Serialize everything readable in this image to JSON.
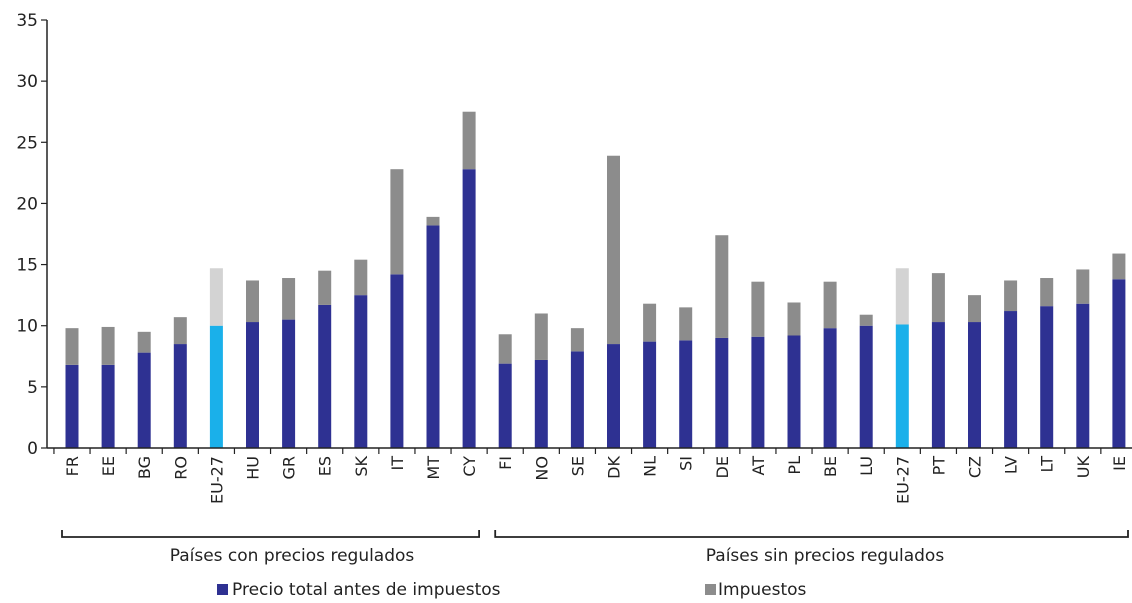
{
  "chart_data": {
    "type": "bar",
    "stacked": true,
    "categories": [
      "FR",
      "EE",
      "BG",
      "RO",
      "EU-27",
      "HU",
      "GR",
      "ES",
      "SK",
      "IT",
      "MT",
      "CY",
      "FI",
      "NO",
      "SE",
      "DK",
      "NL",
      "SI",
      "DE",
      "AT",
      "PL",
      "BE",
      "LU",
      "EU-27",
      "PT",
      "CZ",
      "LV",
      "LT",
      "UK",
      "IE"
    ],
    "series": [
      {
        "name": "Precio total antes de impuestos",
        "color": "#2e3192",
        "values": [
          6.8,
          6.8,
          7.8,
          8.5,
          10.0,
          10.3,
          10.5,
          11.7,
          12.5,
          14.2,
          18.2,
          22.8,
          6.9,
          7.2,
          7.9,
          8.5,
          8.7,
          8.8,
          9.0,
          9.1,
          9.2,
          9.8,
          10.0,
          10.1,
          10.3,
          10.3,
          11.2,
          11.6,
          11.8,
          13.8
        ]
      },
      {
        "name": "Impuestos",
        "color": "#8c8c8c",
        "values": [
          3.0,
          3.1,
          1.7,
          2.2,
          4.7,
          3.4,
          3.4,
          2.8,
          2.9,
          8.6,
          0.7,
          4.7,
          2.4,
          3.8,
          1.9,
          15.4,
          3.1,
          2.7,
          8.4,
          4.5,
          2.7,
          3.8,
          0.9,
          4.6,
          4.0,
          2.2,
          2.5,
          2.3,
          2.8,
          2.1
        ]
      }
    ],
    "highlight_categories_index": [
      4,
      23
    ],
    "highlight_colors": {
      "pre_tax": "#1ab0ea",
      "tax": "#d3d3d3"
    },
    "ylim": [
      0,
      35
    ],
    "yticks": [
      0,
      5,
      10,
      15,
      20,
      25,
      30,
      35
    ],
    "groups": [
      {
        "label": "Países con precios regulados",
        "start": 0,
        "end": 11
      },
      {
        "label": "Países sin precios regulados",
        "start": 12,
        "end": 29
      }
    ],
    "legend": [
      "Precio total antes de impuestos",
      "Impuestos"
    ],
    "legend_position": "bottom",
    "grid": false
  }
}
